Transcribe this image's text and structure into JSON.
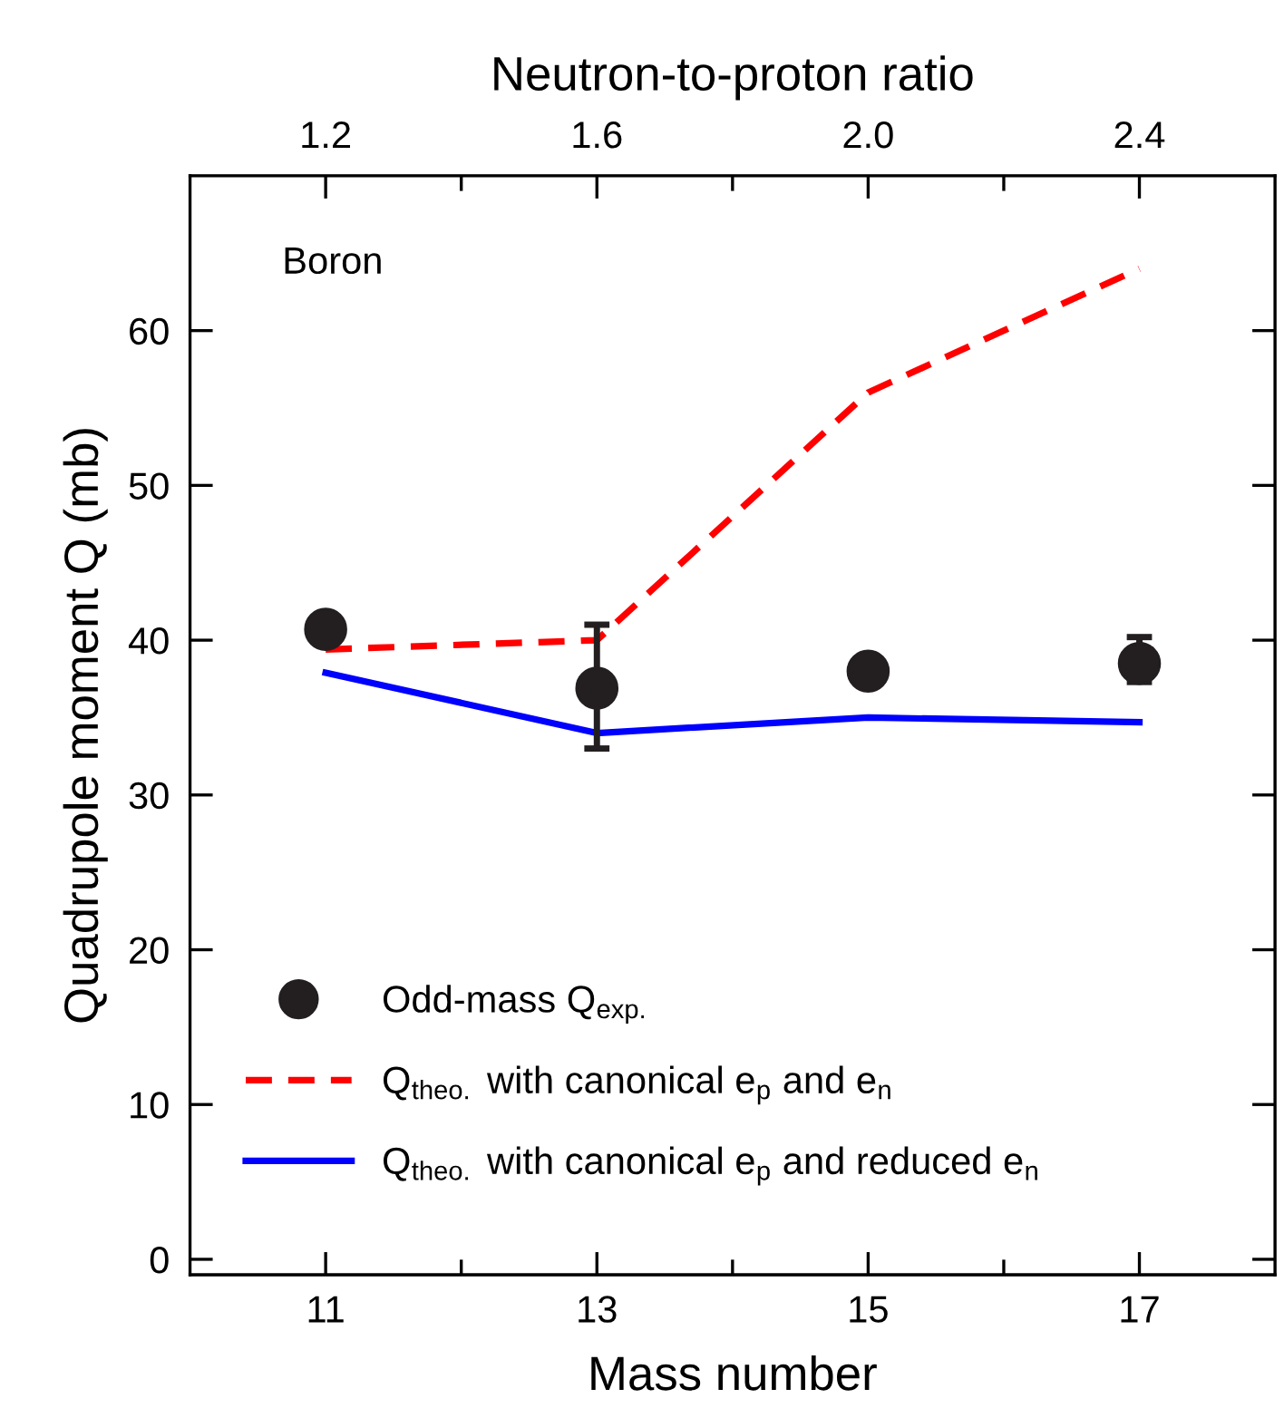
{
  "chart_data": {
    "type": "line",
    "xlabel": "Mass number",
    "ylabel": "Quadrupole moment Q (mb)",
    "x2label": "Neutron-to-proton ratio",
    "annotations": [
      "Boron"
    ],
    "xlim": [
      10,
      18
    ],
    "xticks": [
      11,
      {
        "value": 12,
        "label": null
      },
      13,
      {
        "value": 14,
        "label": null
      },
      15,
      {
        "value": 16,
        "label": null
      },
      17
    ],
    "x2lim": [
      1.0,
      2.6
    ],
    "x2ticks": [
      1.2,
      {
        "value": 1.4,
        "label": null
      },
      1.6,
      {
        "value": 1.8,
        "label": null
      },
      {
        "value": 2.0,
        "label": "2.0"
      },
      {
        "value": 2.2,
        "label": null
      },
      2.4
    ],
    "ylim": [
      -1,
      70
    ],
    "yticks": [
      0,
      10,
      20,
      30,
      40,
      50,
      60
    ],
    "grid": false,
    "legend": "bottom left",
    "series": [
      {
        "type": "scatter",
        "name": "Odd-mass Q$_{exp.}$",
        "color": "#231f20",
        "marker": "circle",
        "x": [
          11,
          13,
          15,
          17
        ],
        "values": [
          40.7,
          36.9,
          38.0,
          38.5
        ],
        "errors": [
          null,
          [
            33.0,
            41.0
          ],
          null,
          [
            37.3,
            40.2
          ]
        ]
      },
      {
        "name": "Q$_{theo.}$ with canonical e$_{p}$ and e$_{n}$",
        "color": "#ff0000",
        "line_style": "dashed",
        "x": [
          11,
          13,
          15,
          17
        ],
        "values": [
          39.4,
          40.0,
          56.0,
          64.0
        ]
      },
      {
        "name": "Q$_{theo.}$ with canonical e$_{p}$ and reduced e$_{n}$",
        "color": "#0000ff",
        "line_style": "solid",
        "x": [
          11,
          13,
          15,
          17
        ],
        "values": [
          37.9,
          34.0,
          35.0,
          34.7
        ]
      }
    ]
  }
}
